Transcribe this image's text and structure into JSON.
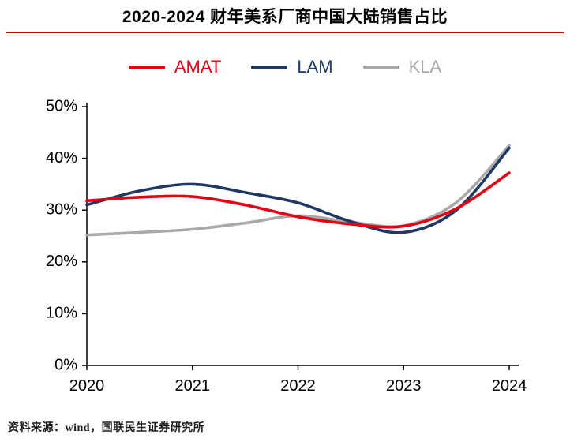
{
  "title": "2020-2024 财年美系厂商中国大陆销售占比",
  "source": "资料来源：wind，国联民生证券研究所",
  "colors": {
    "divider": "#c00000",
    "axis": "#000000",
    "amat": "#e60012",
    "lam": "#1f3864",
    "kla": "#a9a9a9"
  },
  "legend": [
    {
      "label": "AMAT",
      "color": "#e60012"
    },
    {
      "label": "LAM",
      "color": "#1f3864"
    },
    {
      "label": "KLA",
      "color": "#a9a9a9"
    }
  ],
  "chart_data": {
    "type": "line",
    "title": "2020-2024 财年美系厂商中国大陆销售占比",
    "xlabel": "",
    "ylabel": "",
    "x": [
      2020,
      2020.5,
      2021,
      2021.5,
      2022,
      2022.5,
      2023,
      2023.5,
      2024
    ],
    "series": [
      {
        "name": "AMAT",
        "color": "#e60012",
        "values": [
          31.8,
          32.5,
          32.6,
          31.0,
          28.7,
          27.3,
          26.9,
          30.3,
          37.2
        ]
      },
      {
        "name": "LAM",
        "color": "#1f3864",
        "values": [
          31.0,
          33.7,
          35.0,
          33.4,
          31.4,
          27.8,
          25.7,
          30.0,
          42.0
        ]
      },
      {
        "name": "KLA",
        "color": "#a9a9a9",
        "values": [
          25.2,
          25.7,
          26.3,
          27.5,
          28.9,
          27.7,
          27.0,
          31.5,
          42.5
        ]
      }
    ],
    "xlim": [
      2020,
      2024
    ],
    "ylim": [
      0,
      50
    ],
    "xticks": [
      {
        "value": 2020,
        "label": "2020"
      },
      {
        "value": 2021,
        "label": "2021"
      },
      {
        "value": 2022,
        "label": "2022"
      },
      {
        "value": 2023,
        "label": "2023"
      },
      {
        "value": 2024,
        "label": "2024"
      }
    ],
    "yticks": [
      {
        "value": 0,
        "label": "0%"
      },
      {
        "value": 10,
        "label": "10%"
      },
      {
        "value": 20,
        "label": "20%"
      },
      {
        "value": 30,
        "label": "30%"
      },
      {
        "value": 40,
        "label": "40%"
      },
      {
        "value": 50,
        "label": "50%"
      }
    ],
    "grid": false,
    "legend_position": "top"
  }
}
